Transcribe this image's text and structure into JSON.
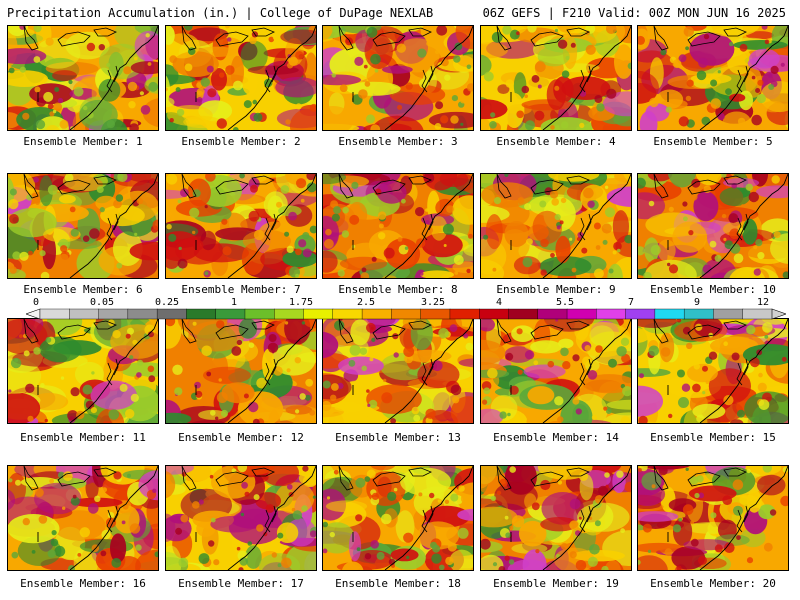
{
  "header": {
    "title_left": "Precipitation Accumulation (in.) | College of DuPage NEXLAB",
    "title_right": "06Z GEFS | F210 Valid: 00Z MON JUN 16 2025"
  },
  "colorbar": {
    "labels": [
      "0",
      "0.05",
      "0.25",
      "1",
      "1.75",
      "2.5",
      "3.25",
      "4",
      "5.5",
      "7",
      "9",
      "12"
    ],
    "colors": [
      "#d9d9d9",
      "#c0c0c0",
      "#a6a6a6",
      "#8c8c8c",
      "#6e6e6e",
      "#2a7a2a",
      "#3a9a3a",
      "#6cbf2a",
      "#a8d820",
      "#e8f000",
      "#f8d800",
      "#f8b000",
      "#f08800",
      "#e85800",
      "#e02000",
      "#c80010",
      "#a00020",
      "#b0007a",
      "#d000b0",
      "#e040e8",
      "#a040f0",
      "#20d8f0",
      "#30c0c8",
      "#a0a0a0",
      "#c8c8c8"
    ]
  },
  "members": [
    {
      "label": "Ensemble Member: 1"
    },
    {
      "label": "Ensemble Member: 2"
    },
    {
      "label": "Ensemble Member: 3"
    },
    {
      "label": "Ensemble Member: 4"
    },
    {
      "label": "Ensemble Member: 5"
    },
    {
      "label": "Ensemble Member: 6"
    },
    {
      "label": "Ensemble Member: 7"
    },
    {
      "label": "Ensemble Member: 8"
    },
    {
      "label": "Ensemble Member: 9"
    },
    {
      "label": "Ensemble Member: 10"
    },
    {
      "label": "Ensemble Member: 11"
    },
    {
      "label": "Ensemble Member: 12"
    },
    {
      "label": "Ensemble Member: 13"
    },
    {
      "label": "Ensemble Member: 14"
    },
    {
      "label": "Ensemble Member: 15"
    },
    {
      "label": "Ensemble Member: 16"
    },
    {
      "label": "Ensemble Member: 17"
    },
    {
      "label": "Ensemble Member: 18"
    },
    {
      "label": "Ensemble Member: 19"
    },
    {
      "label": "Ensemble Member: 20"
    }
  ]
}
